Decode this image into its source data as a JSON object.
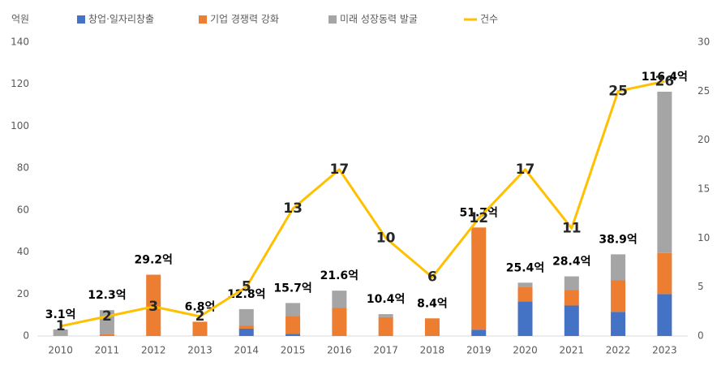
{
  "chart_data": {
    "type": "bar",
    "y_label": "억원",
    "categories": [
      "2010",
      "2011",
      "2012",
      "2013",
      "2014",
      "2015",
      "2016",
      "2017",
      "2018",
      "2019",
      "2020",
      "2021",
      "2022",
      "2023"
    ],
    "series": [
      {
        "name": "창업·일자리창출",
        "color": "#4472c4",
        "values": [
          0,
          0,
          0,
          0,
          3.5,
          1,
          0,
          0,
          0,
          3,
          16.5,
          14.5,
          11.5,
          20
        ]
      },
      {
        "name": "기업 경쟁력 강화",
        "color": "#ed7d31",
        "values": [
          0,
          0.8,
          29.2,
          6.8,
          1.5,
          8.5,
          13.5,
          9,
          8.4,
          48.7,
          7,
          7.5,
          15,
          19.5
        ]
      },
      {
        "name": "미래 성장동력 발굴",
        "color": "#a5a5a5",
        "values": [
          3.1,
          11.5,
          0,
          0,
          7.8,
          6.2,
          8.1,
          1.4,
          0,
          0,
          1.9,
          6.4,
          12.4,
          76.9
        ]
      },
      {
        "name": "건수",
        "color": "#ffc000",
        "type": "line",
        "axis": "y2",
        "values": [
          1,
          2,
          3,
          2,
          5,
          13,
          17,
          10,
          6,
          12,
          17,
          11,
          25,
          26
        ]
      }
    ],
    "totals": {
      "values": [
        3.1,
        12.3,
        29.2,
        6.8,
        12.8,
        15.7,
        21.6,
        10.4,
        8.4,
        51.7,
        25.4,
        28.4,
        38.9,
        116.4
      ],
      "value_labels": [
        "3.1억",
        "12.3억",
        "29.2억",
        "6.8억",
        "12.8억",
        "15.7억",
        "21.6억",
        "10.4억",
        "8.4억",
        "51.7억",
        "25.4억",
        "28.4억",
        "38.9억",
        "116.4억"
      ]
    },
    "ylim": [
      0,
      140
    ],
    "yticks": [
      0,
      20,
      40,
      60,
      80,
      100,
      120,
      140
    ],
    "y2lim": [
      0,
      30
    ],
    "y2ticks": [
      0,
      5,
      10,
      15,
      20,
      25,
      30
    ]
  }
}
